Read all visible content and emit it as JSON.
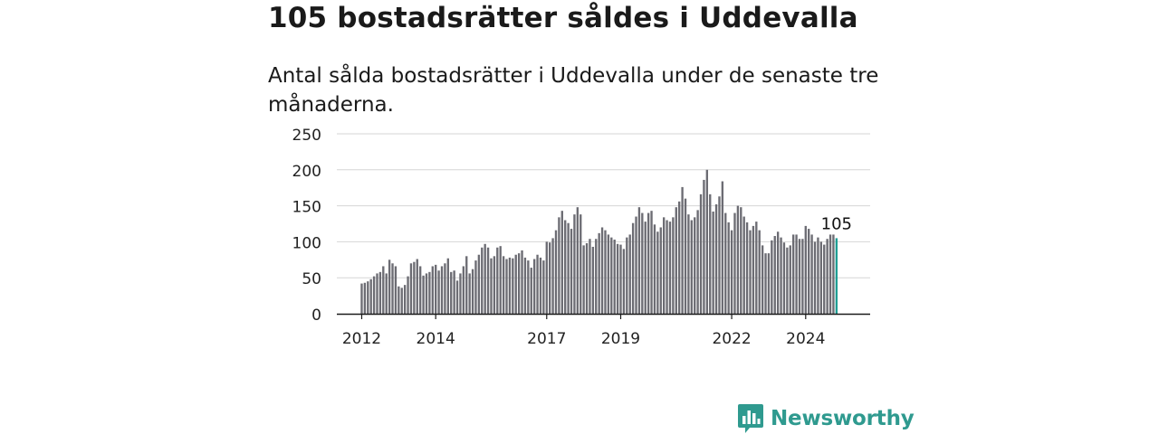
{
  "header": {
    "title": "105 bostadsrätter såldes i Uddevalla",
    "subtitle": "Antal sålda bostadsrätter i Uddevalla under de senaste tre månaderna."
  },
  "brand": {
    "name": "Newsworthy",
    "color": "#2f9a8f",
    "icon": "bar-chart-logo-icon"
  },
  "colors": {
    "bar": "#6c6c73",
    "highlight": "#1f9e94",
    "grid": "#d6d6d6",
    "axis": "#1a1a1a"
  },
  "chart_data": {
    "type": "bar",
    "title": "",
    "xlabel": "",
    "ylabel": "",
    "ylim": [
      0,
      250
    ],
    "y_ticks": [
      0,
      50,
      100,
      150,
      200,
      250
    ],
    "x_tick_labels": [
      {
        "label": "2012",
        "year": 2012
      },
      {
        "label": "2014",
        "year": 2014
      },
      {
        "label": "2017",
        "year": 2017
      },
      {
        "label": "2019",
        "year": 2019
      },
      {
        "label": "2022",
        "year": 2022
      },
      {
        "label": "2024",
        "year": 2024
      }
    ],
    "start": "2012-01",
    "interval": "month",
    "grid": true,
    "highlight_last": true,
    "last_label": "105",
    "values": [
      42,
      43,
      45,
      48,
      52,
      56,
      58,
      66,
      56,
      75,
      70,
      66,
      38,
      36,
      40,
      52,
      70,
      72,
      76,
      66,
      53,
      56,
      58,
      66,
      68,
      60,
      66,
      70,
      77,
      58,
      60,
      46,
      56,
      66,
      80,
      56,
      62,
      74,
      82,
      92,
      97,
      92,
      77,
      80,
      92,
      94,
      80,
      76,
      78,
      77,
      82,
      84,
      88,
      78,
      74,
      64,
      76,
      82,
      78,
      74,
      100,
      99,
      105,
      116,
      134,
      143,
      130,
      126,
      118,
      138,
      148,
      138,
      95,
      98,
      104,
      93,
      104,
      112,
      120,
      116,
      110,
      106,
      103,
      97,
      96,
      90,
      106,
      110,
      126,
      135,
      148,
      140,
      128,
      140,
      143,
      124,
      114,
      120,
      134,
      130,
      128,
      134,
      148,
      156,
      176,
      160,
      138,
      130,
      134,
      144,
      166,
      186,
      200,
      166,
      142,
      152,
      163,
      184,
      140,
      127,
      116,
      140,
      150,
      148,
      135,
      127,
      116,
      122,
      128,
      116,
      95,
      84,
      84,
      102,
      108,
      114,
      106,
      99,
      92,
      95,
      110,
      110,
      104,
      104,
      122,
      118,
      110,
      100,
      106,
      100,
      96,
      104,
      110,
      110,
      105
    ]
  }
}
